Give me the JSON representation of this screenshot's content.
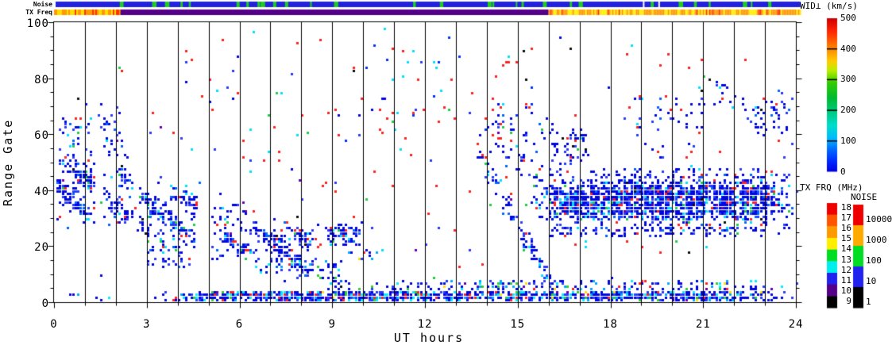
{
  "strips": {
    "noise_label": "Noise",
    "txfreq_label": "TX Freq",
    "noise": {
      "base_color": "#2222dd",
      "mark_color": "#22cc22",
      "gap_color": "#ffffff",
      "mark_count": 30,
      "gap_times": [
        19.05,
        19.55
      ]
    },
    "txfreq_segments": [
      {
        "t0": 0.0,
        "t1": 2.15,
        "style": "mottled",
        "colors": [
          "#ff9900",
          "#ffdd00",
          "#ff3300"
        ],
        "weights": [
          0.5,
          0.35,
          0.15
        ]
      },
      {
        "t0": 2.15,
        "t1": 16.0,
        "style": "solid",
        "colors": [
          "#550088"
        ],
        "weights": [
          1
        ]
      },
      {
        "t0": 16.0,
        "t1": 24.15,
        "style": "mottled",
        "colors": [
          "#ff9900",
          "#ffee00",
          "#ff3300"
        ],
        "weights": [
          0.55,
          0.35,
          0.1
        ]
      }
    ]
  },
  "chart_data": {
    "type": "heatmap",
    "title": "",
    "xlabel": "UT hours",
    "ylabel": "Range Gate",
    "xlim": [
      0,
      24
    ],
    "ylim": [
      0,
      100
    ],
    "x_ticks": [
      0,
      3,
      6,
      9,
      12,
      15,
      18,
      21,
      24
    ],
    "y_ticks": [
      0,
      20,
      40,
      60,
      80,
      100
    ],
    "y_minor_step": 5,
    "x_minor_step": 1,
    "hour_lines_every": 1,
    "grid": "vertical-hour-lines",
    "cell_minutes": 5,
    "cell_gates": 1,
    "palettes": {
      "blob": {
        "colors": [
          "#0008e0",
          "#2a3bff",
          "#0066ff",
          "#00e0ff",
          "#ff2222",
          "#22cc44",
          "#6a00b0",
          "#101010"
        ],
        "weights": [
          0.6,
          0.17,
          0.08,
          0.06,
          0.045,
          0.025,
          0.01,
          0.01
        ]
      },
      "band": {
        "colors": [
          "#0008e0",
          "#2a3bff",
          "#00aaff",
          "#00eeff",
          "#ff2222",
          "#33cc33",
          "#ffdd00",
          "#6a00b0"
        ],
        "weights": [
          0.52,
          0.16,
          0.1,
          0.09,
          0.06,
          0.04,
          0.015,
          0.015
        ]
      },
      "sparse": {
        "colors": [
          "#ff2222",
          "#0008e0",
          "#2a3bff",
          "#00e0ff",
          "#22cc44",
          "#101010",
          "#6a00b0"
        ],
        "weights": [
          0.4,
          0.22,
          0.12,
          0.12,
          0.07,
          0.04,
          0.03
        ]
      },
      "redscatter": {
        "colors": [
          "#ff2222",
          "#0033ff",
          "#00e0ff",
          "#101010"
        ],
        "weights": [
          0.62,
          0.2,
          0.12,
          0.06
        ]
      }
    },
    "regions": [
      {
        "name": "dawn-blob-1",
        "shape": "rect",
        "t": [
          0.0,
          1.35
        ],
        "g": [
          25,
          52
        ],
        "d": 0.8,
        "p": "blob",
        "stripe": true
      },
      {
        "name": "dawn-scatter-high",
        "shape": "rect",
        "t": [
          0.0,
          2.4
        ],
        "g": [
          44,
          71
        ],
        "d": 0.13,
        "p": "blob"
      },
      {
        "name": "dawn-blob-2",
        "shape": "rect",
        "t": [
          1.45,
          2.6
        ],
        "g": [
          24,
          48
        ],
        "d": 0.5,
        "p": "blob",
        "stripe": true
      },
      {
        "name": "morning-blob",
        "shape": "rect",
        "t": [
          2.6,
          4.7
        ],
        "g": [
          19,
          44
        ],
        "d": 0.62,
        "p": "blob",
        "stripe": true
      },
      {
        "name": "morning-blob-tail",
        "shape": "rect",
        "t": [
          2.8,
          4.4
        ],
        "g": [
          12,
          20
        ],
        "d": 0.28,
        "p": "blob"
      },
      {
        "name": "midday-blob",
        "shape": "rect",
        "t": [
          5.0,
          8.6
        ],
        "g": [
          14,
          29
        ],
        "d": 0.7,
        "p": "blob",
        "stripe": true
      },
      {
        "name": "midday-blob-top",
        "shape": "rect",
        "t": [
          5.0,
          6.3
        ],
        "g": [
          28,
          35
        ],
        "d": 0.22,
        "p": "blob"
      },
      {
        "name": "descending-trace-am",
        "shape": "diag",
        "line": [
          7.0,
          17,
          9.6,
          3
        ],
        "w": 4,
        "d": 0.5,
        "p": "blob"
      },
      {
        "name": "blob-09ut",
        "shape": "rect",
        "t": [
          8.7,
          9.9
        ],
        "g": [
          19,
          27
        ],
        "d": 0.55,
        "p": "blob"
      },
      {
        "name": "low-fuzz-am",
        "shape": "rect",
        "t": [
          6.3,
          9.3
        ],
        "g": [
          8,
          14
        ],
        "d": 0.18,
        "p": "band"
      },
      {
        "name": "short-line-10ut",
        "shape": "rect",
        "t": [
          9.4,
          10.6
        ],
        "g": [
          14,
          17
        ],
        "d": 0.18,
        "p": "band"
      },
      {
        "name": "ground-band",
        "shape": "rect",
        "t": [
          2.9,
          24.05
        ],
        "g": [
          0,
          3
        ],
        "d": 0.85,
        "p": "band"
      },
      {
        "name": "ground-band-early",
        "shape": "rect",
        "t": [
          0.0,
          2.9
        ],
        "g": [
          0,
          3
        ],
        "d": 0.12,
        "p": "band"
      },
      {
        "name": "ground-band-upper",
        "shape": "rect",
        "t": [
          9.5,
          24.05
        ],
        "g": [
          3,
          7
        ],
        "d": 0.3,
        "p": "band"
      },
      {
        "name": "descending-trace-pm",
        "shape": "diag",
        "line": [
          13.75,
          51,
          16.2,
          4
        ],
        "w": 5,
        "d": 0.5,
        "p": "blob"
      },
      {
        "name": "pre-dusk-scatter",
        "shape": "rect",
        "t": [
          13.8,
          16.0
        ],
        "g": [
          40,
          72
        ],
        "d": 0.1,
        "p": "blob"
      },
      {
        "name": "dusk-band",
        "shape": "rect",
        "t": [
          15.35,
          24.05
        ],
        "g": [
          27,
          44
        ],
        "d": 0.8,
        "p": "blob"
      },
      {
        "name": "dusk-band-bottom-fuzz",
        "shape": "rect",
        "t": [
          15.35,
          24.05
        ],
        "g": [
          23,
          27
        ],
        "d": 0.3,
        "p": "blob"
      },
      {
        "name": "dusk-band-top-fuzz",
        "shape": "rect",
        "t": [
          15.35,
          24.05
        ],
        "g": [
          44,
          47
        ],
        "d": 0.25,
        "p": "blob"
      },
      {
        "name": "dusk-patch-high",
        "shape": "rect",
        "t": [
          15.9,
          17.3
        ],
        "g": [
          47,
          63
        ],
        "d": 0.25,
        "p": "blob"
      },
      {
        "name": "evening-scatter",
        "shape": "rect",
        "t": [
          18.3,
          21.2
        ],
        "g": [
          55,
          75
        ],
        "d": 0.07,
        "p": "blob"
      },
      {
        "name": "late-diag-streaks",
        "shape": "diag",
        "line": [
          21.2,
          77,
          22.8,
          64
        ],
        "w": 5,
        "d": 0.2,
        "p": "blob"
      },
      {
        "name": "late-scatter",
        "shape": "rect",
        "t": [
          22.4,
          24.05
        ],
        "g": [
          55,
          78
        ],
        "d": 0.13,
        "p": "blob"
      },
      {
        "name": "midday-high-specks",
        "shape": "rect",
        "t": [
          9.3,
          16.0
        ],
        "g": [
          50,
          100
        ],
        "d": 0.016,
        "p": "redscatter"
      },
      {
        "name": "global-sparse-specks",
        "shape": "rect",
        "t": [
          0.0,
          24.05
        ],
        "g": [
          0,
          100
        ],
        "d": 0.011,
        "p": "sparse"
      }
    ],
    "colorbars": {
      "wid": {
        "title": "WID⊥ (km/s)",
        "ticks": [
          500,
          400,
          300,
          200,
          100,
          0
        ],
        "range": [
          0,
          500
        ],
        "tick_lines": [
          0.2,
          0.4,
          0.6,
          0.8
        ],
        "gradient_top_to_bottom": [
          [
            "#cc0000",
            0.0
          ],
          [
            "#ff2200",
            0.08
          ],
          [
            "#ff7700",
            0.18
          ],
          [
            "#ffcc00",
            0.28
          ],
          [
            "#bbee00",
            0.34
          ],
          [
            "#33cc00",
            0.42
          ],
          [
            "#00bb33",
            0.52
          ],
          [
            "#00cc88",
            0.62
          ],
          [
            "#00ddcc",
            0.7
          ],
          [
            "#00bbff",
            0.78
          ],
          [
            "#0066ff",
            0.86
          ],
          [
            "#0022ff",
            0.94
          ],
          [
            "#0000dd",
            1.0
          ]
        ]
      },
      "freq": {
        "title": "TX FRQ (MHz)",
        "ticks": [
          18,
          17,
          16,
          15,
          14,
          13,
          12,
          11,
          10,
          9
        ],
        "segment_colors_top_to_bottom": [
          "#ee0000",
          "#ff5500",
          "#ff9900",
          "#ffee00",
          "#00dd22",
          "#00eeee",
          "#2222ee",
          "#550088",
          "#000000"
        ]
      },
      "noise": {
        "title": "NOISE",
        "ticks": [
          "10000",
          "1000",
          "100",
          "10",
          "1"
        ],
        "segment_colors_top_to_bottom": [
          "#ee0000",
          "#ffaa00",
          "#00dd22",
          "#2222ee",
          "#000000"
        ]
      }
    }
  }
}
